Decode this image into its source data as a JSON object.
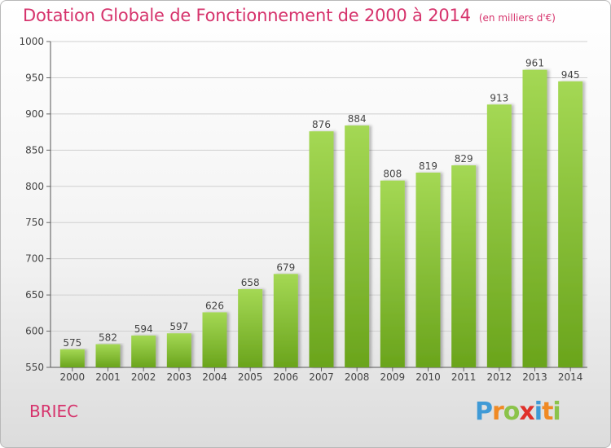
{
  "title": "Dotation Globale de Fonctionnement de 2000 à 2014",
  "subtitle": "(en milliers d'€)",
  "city": "BRIEC",
  "logo": {
    "letters": [
      "P",
      "r",
      "o",
      "x",
      "i",
      "t",
      "i"
    ],
    "colors": [
      "#3f9ad6",
      "#f08a24",
      "#8bc34a",
      "#e0312b",
      "#3f9ad6",
      "#f08a24",
      "#8bc34a"
    ]
  },
  "colors": {
    "title": "#d6336c",
    "bar_light": "#a4d854",
    "bar_dark": "#6aa41c"
  },
  "chart_data": {
    "type": "bar",
    "categories": [
      "2000",
      "2001",
      "2002",
      "2003",
      "2004",
      "2005",
      "2006",
      "2007",
      "2008",
      "2009",
      "2010",
      "2011",
      "2012",
      "2013",
      "2014"
    ],
    "values": [
      575,
      582,
      594,
      597,
      626,
      658,
      679,
      876,
      884,
      808,
      819,
      829,
      913,
      961,
      945
    ],
    "ylim": [
      550,
      1000
    ],
    "yticks": [
      550,
      600,
      650,
      700,
      750,
      800,
      850,
      900,
      950,
      1000
    ],
    "grid": true,
    "data_labels": true
  }
}
